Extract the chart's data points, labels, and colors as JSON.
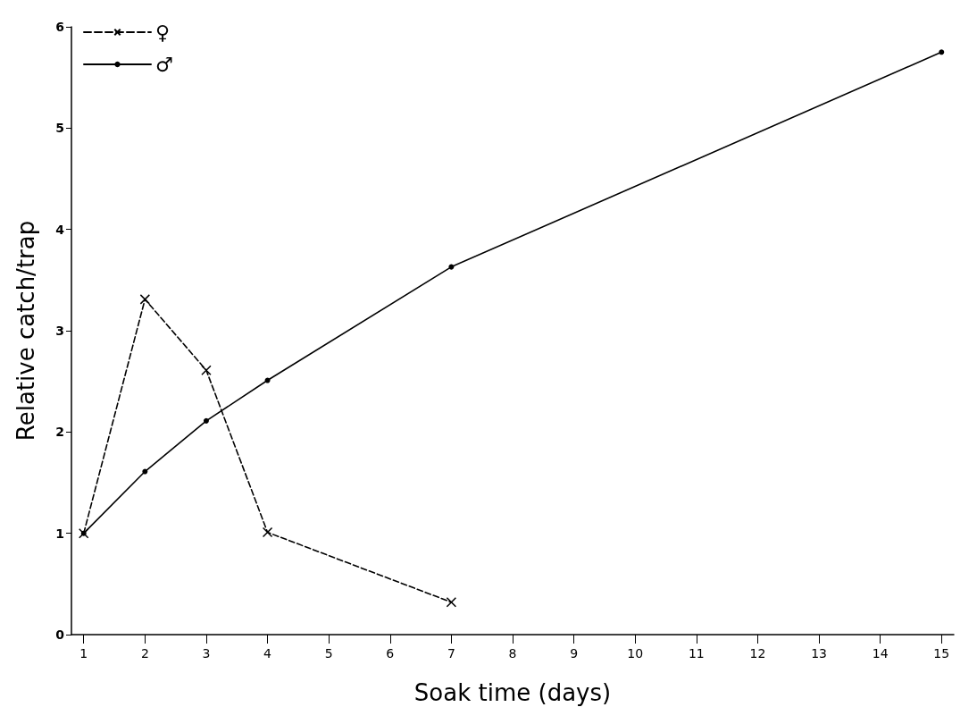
{
  "chart_data": {
    "type": "line",
    "xlabel": "Soak time (days)",
    "ylabel": "Relative catch/trap",
    "xlim": [
      0.8,
      15.2
    ],
    "xticks": [
      1,
      2,
      3,
      4,
      5,
      6,
      7,
      8,
      9,
      10,
      11,
      12,
      13,
      14,
      15
    ],
    "ylim": [
      0,
      6
    ],
    "yticks": [
      0,
      1,
      2,
      3,
      4,
      5,
      6
    ],
    "series": [
      {
        "name": "♀",
        "color": "#000000",
        "line_style": "dashed",
        "marker": "cross",
        "x": [
          1,
          2,
          3,
          4,
          7
        ],
        "values": [
          1,
          3.31,
          2.61,
          1.01,
          0.32
        ]
      },
      {
        "name": "♂",
        "color": "#000000",
        "line_style": "solid",
        "marker": "circle",
        "x": [
          1,
          2,
          3,
          4,
          7,
          15
        ],
        "values": [
          1,
          1.61,
          2.11,
          2.51,
          3.63,
          5.75
        ]
      }
    ],
    "legend": "top left",
    "grid": false
  }
}
